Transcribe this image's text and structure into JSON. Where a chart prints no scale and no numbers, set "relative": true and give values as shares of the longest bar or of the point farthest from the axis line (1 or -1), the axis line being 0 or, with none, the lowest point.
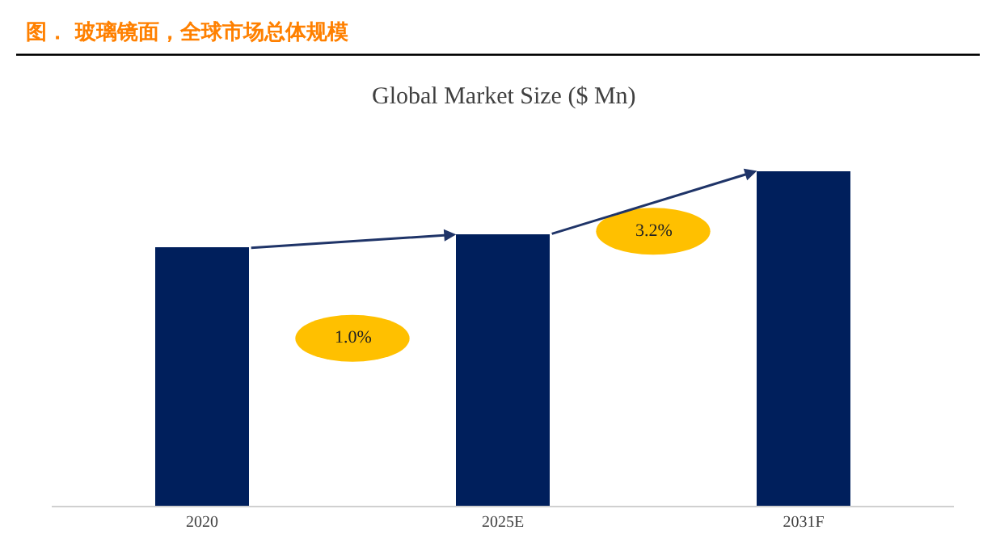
{
  "chart_data": {
    "type": "bar",
    "title": "图． 玻璃镜面，全球市场总体规模",
    "subtitle": "Global Market Size ($ Mn)",
    "relative": true,
    "categories": [
      "2020",
      "2025E",
      "2031F"
    ],
    "values": [
      0.77,
      0.81,
      1
    ],
    "color": "#001f5c",
    "annotations": [
      "1.0%",
      "3.2%"
    ]
  }
}
